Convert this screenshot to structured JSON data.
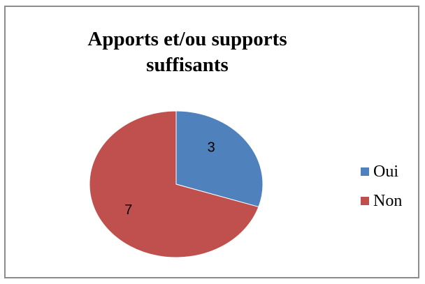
{
  "chart_data": {
    "type": "pie",
    "title_line1": "Apports et/ou supports",
    "title_line2": "suffisants",
    "categories": [
      "Oui",
      "Non"
    ],
    "values": [
      3,
      7
    ],
    "data_labels": [
      "3",
      "7"
    ],
    "colors": [
      "#4f81bd",
      "#c0504d"
    ],
    "legend_position": "right"
  }
}
